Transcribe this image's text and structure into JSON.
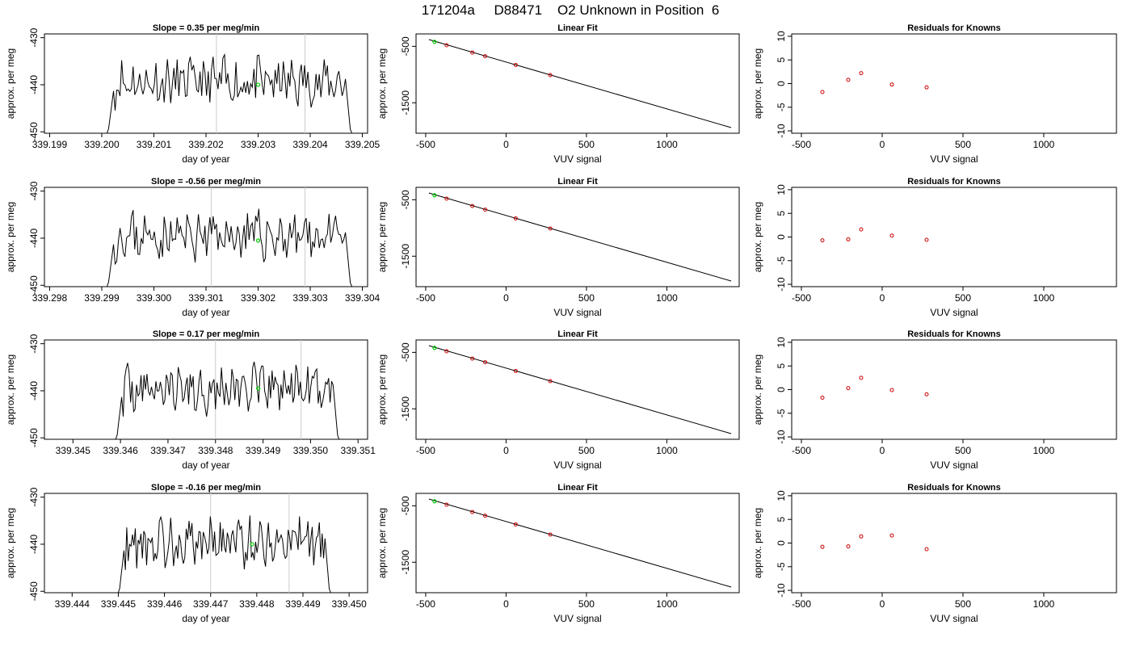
{
  "title": "171204a     D88471    O2 Unknown in Position  6",
  "colors": {
    "trace": "#000000",
    "vline": "#cccccc",
    "standard": "#00cc00",
    "knowns": "#cc0000",
    "fit": "#000000"
  },
  "panel_text": {
    "ts_ylabel": "approx. per meg",
    "ts_xlabel": "day of year",
    "fit_title": "Linear Fit",
    "fit_xlabel": "VUV signal",
    "fit_ylabel": "approx. per meg",
    "res_title": "Residuals for Knowns",
    "res_xlabel": "VUV signal",
    "res_ylabel": "approx. per meg"
  },
  "chart_data": [
    {
      "type": "line",
      "title": "Slope =  0.35  per meg/min",
      "xlabel": "day of year",
      "ylabel": "approx. per meg",
      "xlim": [
        339.1989,
        339.2051
      ],
      "ylim": [
        -450.3,
        -429.2
      ],
      "xticks": [
        "339.199",
        "339.200",
        "339.201",
        "339.202",
        "339.203",
        "339.204",
        "339.205"
      ],
      "yticks": [
        "-430",
        "-440",
        "-450"
      ],
      "vlines": [
        339.2022,
        339.2039
      ],
      "highlight": [
        339.203,
        -440.0
      ],
      "trace": {
        "x_start": 339.2001,
        "x_end": 339.2048,
        "seed": 11
      }
    },
    {
      "type": "line",
      "title": "Linear Fit",
      "xlabel": "VUV signal",
      "ylabel": "approx. per meg",
      "xlim": [
        -560,
        1450
      ],
      "ylim": [
        -2040,
        -280
      ],
      "xticks": [
        "-500",
        "0",
        "500",
        "1000"
      ],
      "yticks": [
        "-500",
        "-1500"
      ],
      "line": [
        [
          -480,
          -380
        ],
        [
          1400,
          -1940
        ]
      ],
      "knowns": [
        [
          -370,
          -480
        ],
        [
          -210,
          -610
        ],
        [
          -130,
          -675
        ],
        [
          60,
          -830
        ],
        [
          275,
          -1010
        ]
      ],
      "standard": [
        -445,
        -420
      ]
    },
    {
      "type": "scatter",
      "title": "Residuals for Knowns",
      "xlabel": "VUV signal",
      "ylabel": "approx. per meg",
      "xlim": [
        -560,
        1450
      ],
      "ylim": [
        -10.5,
        10.5
      ],
      "xticks": [
        "-500",
        "0",
        "500",
        "1000"
      ],
      "yticks": [
        "-10",
        "-5",
        "0",
        "5",
        "10"
      ],
      "points": [
        [
          -370,
          -1.8
        ],
        [
          -210,
          0.8
        ],
        [
          -130,
          2.2
        ],
        [
          60,
          -0.2
        ],
        [
          275,
          -0.8
        ]
      ]
    },
    {
      "type": "line",
      "title": "Slope =  -0.56  per meg/min",
      "xlabel": "day of year",
      "ylabel": "approx. per meg",
      "xlim": [
        339.2979,
        339.3041
      ],
      "ylim": [
        -450.3,
        -429.2
      ],
      "xticks": [
        "339.298",
        "339.299",
        "339.300",
        "339.301",
        "339.302",
        "339.303",
        "339.304"
      ],
      "yticks": [
        "-430",
        "-440",
        "-450"
      ],
      "vlines": [
        339.3011,
        339.3029
      ],
      "highlight": [
        339.302,
        -440.5
      ],
      "trace": {
        "x_start": 339.2991,
        "x_end": 339.3038,
        "seed": 23
      }
    },
    {
      "type": "line",
      "title": "Linear Fit",
      "xlabel": "VUV signal",
      "ylabel": "approx. per meg",
      "xlim": [
        -560,
        1450
      ],
      "ylim": [
        -2040,
        -280
      ],
      "xticks": [
        "-500",
        "0",
        "500",
        "1000"
      ],
      "yticks": [
        "-500",
        "-1500"
      ],
      "line": [
        [
          -480,
          -380
        ],
        [
          1400,
          -1940
        ]
      ],
      "knowns": [
        [
          -370,
          -480
        ],
        [
          -210,
          -610
        ],
        [
          -130,
          -675
        ],
        [
          60,
          -830
        ],
        [
          275,
          -1010
        ]
      ],
      "standard": [
        -445,
        -420
      ]
    },
    {
      "type": "scatter",
      "title": "Residuals for Knowns",
      "xlabel": "VUV signal",
      "ylabel": "approx. per meg",
      "xlim": [
        -560,
        1450
      ],
      "ylim": [
        -10.5,
        10.5
      ],
      "xticks": [
        "-500",
        "0",
        "500",
        "1000"
      ],
      "yticks": [
        "-10",
        "-5",
        "0",
        "5",
        "10"
      ],
      "points": [
        [
          -370,
          -0.7
        ],
        [
          -210,
          -0.5
        ],
        [
          -130,
          1.6
        ],
        [
          60,
          0.3
        ],
        [
          275,
          -0.6
        ]
      ]
    },
    {
      "type": "line",
      "title": "Slope =  0.17  per meg/min",
      "xlabel": "day of year",
      "ylabel": "approx. per meg",
      "xlim": [
        339.3444,
        339.3512
      ],
      "ylim": [
        -450.3,
        -429.2
      ],
      "xticks": [
        "339.345",
        "339.346",
        "339.347",
        "339.348",
        "339.349",
        "339.350",
        "339.351"
      ],
      "yticks": [
        "-430",
        "-440",
        "-450"
      ],
      "vlines": [
        339.348,
        339.3498
      ],
      "highlight": [
        339.3489,
        -439.5
      ],
      "trace": {
        "x_start": 339.3459,
        "x_end": 339.3506,
        "seed": 37
      }
    },
    {
      "type": "line",
      "title": "Linear Fit",
      "xlabel": "VUV signal",
      "ylabel": "approx. per meg",
      "xlim": [
        -560,
        1450
      ],
      "ylim": [
        -2040,
        -280
      ],
      "xticks": [
        "-500",
        "0",
        "500",
        "1000"
      ],
      "yticks": [
        "-500",
        "-1500"
      ],
      "line": [
        [
          -480,
          -380
        ],
        [
          1400,
          -1940
        ]
      ],
      "knowns": [
        [
          -370,
          -480
        ],
        [
          -210,
          -610
        ],
        [
          -130,
          -675
        ],
        [
          60,
          -830
        ],
        [
          275,
          -1010
        ]
      ],
      "standard": [
        -445,
        -420
      ]
    },
    {
      "type": "scatter",
      "title": "Residuals for Knowns",
      "xlabel": "VUV signal",
      "ylabel": "approx. per meg",
      "xlim": [
        -560,
        1450
      ],
      "ylim": [
        -10.5,
        10.5
      ],
      "xticks": [
        "-500",
        "0",
        "500",
        "1000"
      ],
      "yticks": [
        "-10",
        "-5",
        "0",
        "5",
        "10"
      ],
      "points": [
        [
          -370,
          -1.7
        ],
        [
          -210,
          0.3
        ],
        [
          -130,
          2.5
        ],
        [
          60,
          -0.1
        ],
        [
          275,
          -1.0
        ]
      ]
    },
    {
      "type": "line",
      "title": "Slope =  -0.16  per meg/min",
      "xlabel": "day of year",
      "ylabel": "approx. per meg",
      "xlim": [
        339.4434,
        339.4504
      ],
      "ylim": [
        -450.3,
        -429.2
      ],
      "xticks": [
        "339.444",
        "339.445",
        "339.446",
        "339.447",
        "339.448",
        "339.449",
        "339.450"
      ],
      "yticks": [
        "-430",
        "-440",
        "-450"
      ],
      "vlines": [
        339.447,
        339.4487
      ],
      "highlight": [
        339.4479,
        -440.0
      ],
      "trace": {
        "x_start": 339.445,
        "x_end": 339.4496,
        "seed": 53
      }
    },
    {
      "type": "line",
      "title": "Linear Fit",
      "xlabel": "VUV signal",
      "ylabel": "approx. per meg",
      "xlim": [
        -560,
        1450
      ],
      "ylim": [
        -2040,
        -280
      ],
      "xticks": [
        "-500",
        "0",
        "500",
        "1000"
      ],
      "yticks": [
        "-500",
        "-1500"
      ],
      "line": [
        [
          -480,
          -380
        ],
        [
          1400,
          -1940
        ]
      ],
      "knowns": [
        [
          -370,
          -480
        ],
        [
          -210,
          -610
        ],
        [
          -130,
          -675
        ],
        [
          60,
          -830
        ],
        [
          275,
          -1010
        ]
      ],
      "standard": [
        -445,
        -420
      ]
    },
    {
      "type": "scatter",
      "title": "Residuals for Knowns",
      "xlabel": "VUV signal",
      "ylabel": "approx. per meg",
      "xlim": [
        -560,
        1450
      ],
      "ylim": [
        -10.5,
        10.5
      ],
      "xticks": [
        "-500",
        "0",
        "500",
        "1000"
      ],
      "yticks": [
        "-10",
        "-5",
        "0",
        "5",
        "10"
      ],
      "points": [
        [
          -370,
          -0.8
        ],
        [
          -210,
          -0.7
        ],
        [
          -130,
          1.4
        ],
        [
          60,
          1.6
        ],
        [
          275,
          -1.3
        ]
      ]
    }
  ]
}
